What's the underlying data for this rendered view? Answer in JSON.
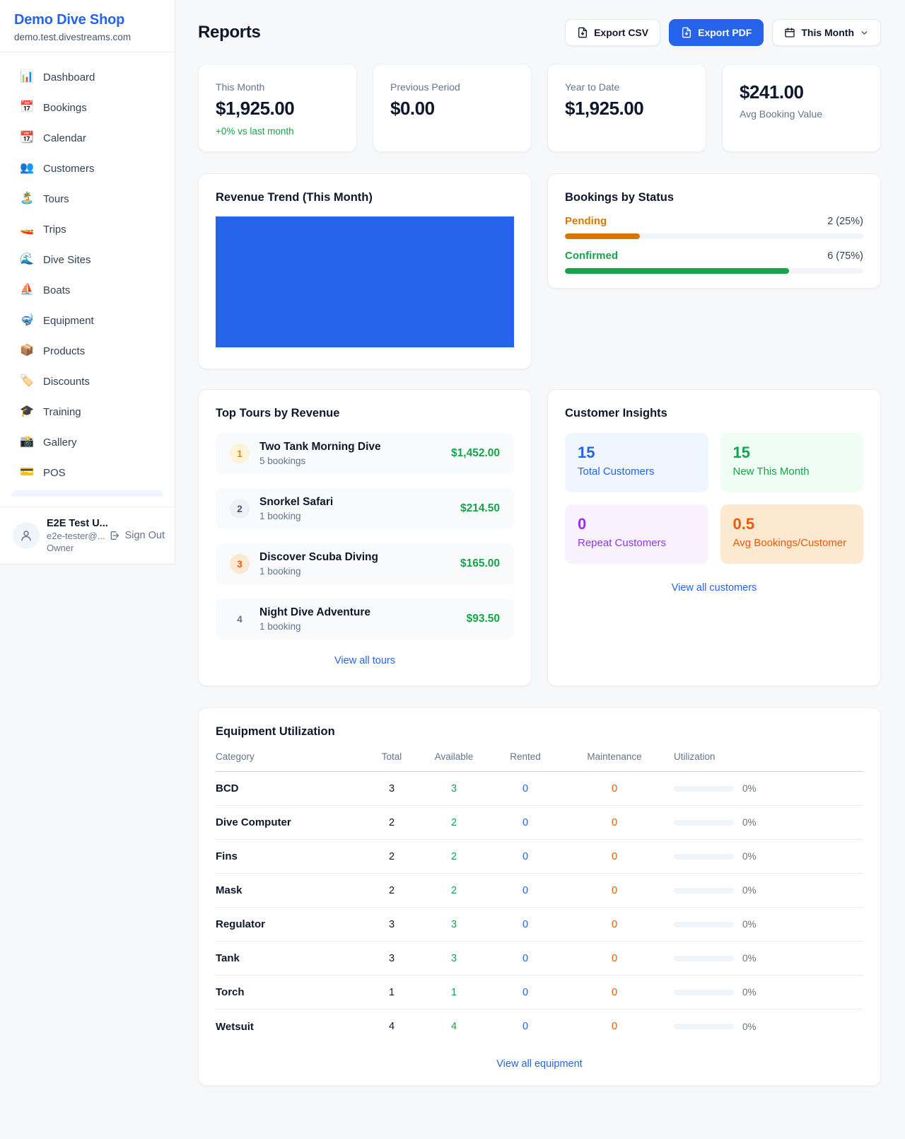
{
  "colors": {
    "accent_blue": "#2563eb",
    "green": "#16a34a",
    "orange_pending": "#d97706",
    "orange_deep": "#ea580c",
    "purple": "#9333ea",
    "text_dark": "#0f172a",
    "text_muted": "#64748b",
    "page_bg": "#f7f8fa"
  },
  "sidebar": {
    "brand": "Demo Dive Shop",
    "domain": "demo.test.divestreams.com",
    "items": [
      {
        "label": "Dashboard",
        "icon": "bar-chart-icon",
        "glyph": "📊"
      },
      {
        "label": "Bookings",
        "icon": "calendar-date-icon",
        "glyph": "📅"
      },
      {
        "label": "Calendar",
        "icon": "tear-calendar-icon",
        "glyph": "📆"
      },
      {
        "label": "Customers",
        "icon": "people-icon",
        "glyph": "👥"
      },
      {
        "label": "Tours",
        "icon": "island-icon",
        "glyph": "🏝️"
      },
      {
        "label": "Trips",
        "icon": "speedboat-icon",
        "glyph": "🚤"
      },
      {
        "label": "Dive Sites",
        "icon": "wave-icon",
        "glyph": "🌊"
      },
      {
        "label": "Boats",
        "icon": "sailboat-icon",
        "glyph": "⛵"
      },
      {
        "label": "Equipment",
        "icon": "diving-mask-icon",
        "glyph": "🤿"
      },
      {
        "label": "Products",
        "icon": "package-icon",
        "glyph": "📦"
      },
      {
        "label": "Discounts",
        "icon": "tag-icon",
        "glyph": "🏷️"
      },
      {
        "label": "Training",
        "icon": "grad-cap-icon",
        "glyph": "🎓"
      },
      {
        "label": "Gallery",
        "icon": "camera-icon",
        "glyph": "📸"
      },
      {
        "label": "POS",
        "icon": "credit-card-icon",
        "glyph": "💳"
      }
    ],
    "user": {
      "name": "E2E Test U...",
      "email": "e2e-tester@...",
      "role": "Owner",
      "sign_out_label": "Sign Out"
    }
  },
  "header": {
    "title": "Reports",
    "export_csv_label": "Export CSV",
    "export_pdf_label": "Export PDF",
    "period_label": "This Month"
  },
  "stats": {
    "cards": [
      {
        "label": "This Month",
        "value": "$1,925.00",
        "delta": "+0% vs last month"
      },
      {
        "label": "Previous Period",
        "value": "$0.00"
      },
      {
        "label": "Year to Date",
        "value": "$1,925.00"
      },
      {
        "label": "Avg Booking Value",
        "value": "$241.00"
      }
    ]
  },
  "revenue_trend": {
    "title": "Revenue Trend (This Month)"
  },
  "chart_data": {
    "type": "bar",
    "title": "Revenue Trend (This Month)",
    "categories": [
      "This Month"
    ],
    "values": [
      1925
    ],
    "note": "Single bar fills entire plot area as a solid blue block; no axes or labels shown"
  },
  "bookings_by_status": {
    "title": "Bookings by Status",
    "statuses": [
      {
        "label": "Pending",
        "value": "2 (25%)",
        "pct": "25%"
      },
      {
        "label": "Confirmed",
        "value": "6 (75%)",
        "pct": "75%"
      }
    ]
  },
  "top_tours": {
    "title": "Top Tours by Revenue",
    "items": [
      {
        "rank": "1",
        "name": "Two Tank Morning Dive",
        "bookings": "5 bookings",
        "revenue": "$1,452.00"
      },
      {
        "rank": "2",
        "name": "Snorkel Safari",
        "bookings": "1 booking",
        "revenue": "$214.50"
      },
      {
        "rank": "3",
        "name": "Discover Scuba Diving",
        "bookings": "1 booking",
        "revenue": "$165.00"
      },
      {
        "rank": "4",
        "name": "Night Dive Adventure",
        "bookings": "1 booking",
        "revenue": "$93.50"
      }
    ],
    "view_all": "View all tours"
  },
  "customer_insights": {
    "title": "Customer Insights",
    "tiles": [
      {
        "value": "15",
        "label": "Total Customers"
      },
      {
        "value": "15",
        "label": "New This Month"
      },
      {
        "value": "0",
        "label": "Repeat Customers"
      },
      {
        "value": "0.5",
        "label": "Avg Bookings/Customer"
      }
    ],
    "view_all": "View all customers"
  },
  "equipment": {
    "title": "Equipment Utilization",
    "columns": {
      "category": "Category",
      "total": "Total",
      "available": "Available",
      "rented": "Rented",
      "maintenance": "Maintenance",
      "utilization": "Utilization"
    },
    "rows": [
      {
        "category": "BCD",
        "total": "3",
        "available": "3",
        "rented": "0",
        "maintenance": "0",
        "utilization": "0%"
      },
      {
        "category": "Dive Computer",
        "total": "2",
        "available": "2",
        "rented": "0",
        "maintenance": "0",
        "utilization": "0%"
      },
      {
        "category": "Fins",
        "total": "2",
        "available": "2",
        "rented": "0",
        "maintenance": "0",
        "utilization": "0%"
      },
      {
        "category": "Mask",
        "total": "2",
        "available": "2",
        "rented": "0",
        "maintenance": "0",
        "utilization": "0%"
      },
      {
        "category": "Regulator",
        "total": "3",
        "available": "3",
        "rented": "0",
        "maintenance": "0",
        "utilization": "0%"
      },
      {
        "category": "Tank",
        "total": "3",
        "available": "3",
        "rented": "0",
        "maintenance": "0",
        "utilization": "0%"
      },
      {
        "category": "Torch",
        "total": "1",
        "available": "1",
        "rented": "0",
        "maintenance": "0",
        "utilization": "0%"
      },
      {
        "category": "Wetsuit",
        "total": "4",
        "available": "4",
        "rented": "0",
        "maintenance": "0",
        "utilization": "0%"
      }
    ],
    "view_all": "View all equipment"
  }
}
